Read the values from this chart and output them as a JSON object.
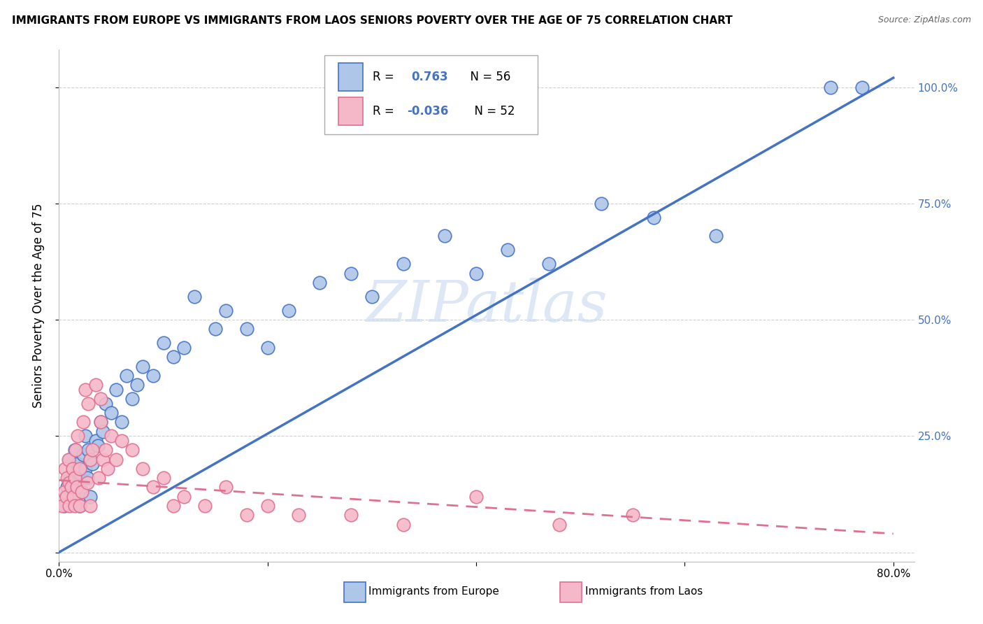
{
  "title": "IMMIGRANTS FROM EUROPE VS IMMIGRANTS FROM LAOS SENIORS POVERTY OVER THE AGE OF 75 CORRELATION CHART",
  "source": "Source: ZipAtlas.com",
  "ylabel": "Seniors Poverty Over the Age of 75",
  "xlabel_europe": "Immigrants from Europe",
  "xlabel_laos": "Immigrants from Laos",
  "watermark": "ZIPatlas",
  "europe_R": "0.763",
  "europe_N": 56,
  "laos_R": "-0.036",
  "laos_N": 52,
  "xlim": [
    0.0,
    0.82
  ],
  "ylim": [
    -0.02,
    1.08
  ],
  "xticks": [
    0.0,
    0.2,
    0.4,
    0.6,
    0.8
  ],
  "yticks": [
    0.0,
    0.25,
    0.5,
    0.75,
    1.0
  ],
  "ytick_labels": [
    "",
    "25.0%",
    "50.0%",
    "75.0%",
    "100.0%"
  ],
  "europe_color": "#aec6e8",
  "europe_line_color": "#4472c4",
  "laos_color": "#f5b8c8",
  "laos_line_color": "#e07090",
  "background_color": "#ffffff",
  "grid_color": "#d0d0d0",
  "europe_line_x0": 0.0,
  "europe_line_y0": 0.0,
  "europe_line_x1": 0.8,
  "europe_line_y1": 1.02,
  "laos_line_x0": 0.0,
  "laos_line_y0": 0.155,
  "laos_line_x1": 0.8,
  "laos_line_y1": 0.04,
  "europe_scatter_x": [
    0.005,
    0.008,
    0.01,
    0.01,
    0.012,
    0.013,
    0.015,
    0.015,
    0.017,
    0.018,
    0.02,
    0.02,
    0.022,
    0.023,
    0.025,
    0.025,
    0.027,
    0.028,
    0.03,
    0.03,
    0.032,
    0.035,
    0.037,
    0.04,
    0.042,
    0.045,
    0.05,
    0.055,
    0.06,
    0.065,
    0.07,
    0.075,
    0.08,
    0.09,
    0.1,
    0.11,
    0.12,
    0.13,
    0.15,
    0.16,
    0.18,
    0.2,
    0.22,
    0.25,
    0.28,
    0.3,
    0.33,
    0.37,
    0.4,
    0.43,
    0.47,
    0.52,
    0.57,
    0.63,
    0.74,
    0.77
  ],
  "europe_scatter_y": [
    0.1,
    0.14,
    0.16,
    0.2,
    0.12,
    0.18,
    0.15,
    0.22,
    0.14,
    0.19,
    0.1,
    0.17,
    0.13,
    0.21,
    0.18,
    0.25,
    0.16,
    0.22,
    0.12,
    0.2,
    0.19,
    0.24,
    0.23,
    0.28,
    0.26,
    0.32,
    0.3,
    0.35,
    0.28,
    0.38,
    0.33,
    0.36,
    0.4,
    0.38,
    0.45,
    0.42,
    0.44,
    0.55,
    0.48,
    0.52,
    0.48,
    0.44,
    0.52,
    0.58,
    0.6,
    0.55,
    0.62,
    0.68,
    0.6,
    0.65,
    0.62,
    0.75,
    0.72,
    0.68,
    1.0,
    1.0
  ],
  "laos_scatter_x": [
    0.003,
    0.005,
    0.006,
    0.007,
    0.008,
    0.009,
    0.01,
    0.01,
    0.012,
    0.013,
    0.014,
    0.015,
    0.015,
    0.016,
    0.017,
    0.018,
    0.02,
    0.02,
    0.022,
    0.023,
    0.025,
    0.027,
    0.028,
    0.03,
    0.03,
    0.032,
    0.035,
    0.038,
    0.04,
    0.04,
    0.042,
    0.045,
    0.047,
    0.05,
    0.055,
    0.06,
    0.07,
    0.08,
    0.09,
    0.1,
    0.11,
    0.12,
    0.14,
    0.16,
    0.18,
    0.2,
    0.23,
    0.28,
    0.33,
    0.4,
    0.48,
    0.55
  ],
  "laos_scatter_y": [
    0.1,
    0.13,
    0.18,
    0.12,
    0.16,
    0.2,
    0.1,
    0.15,
    0.14,
    0.18,
    0.12,
    0.1,
    0.16,
    0.22,
    0.14,
    0.25,
    0.1,
    0.18,
    0.13,
    0.28,
    0.35,
    0.15,
    0.32,
    0.1,
    0.2,
    0.22,
    0.36,
    0.16,
    0.28,
    0.33,
    0.2,
    0.22,
    0.18,
    0.25,
    0.2,
    0.24,
    0.22,
    0.18,
    0.14,
    0.16,
    0.1,
    0.12,
    0.1,
    0.14,
    0.08,
    0.1,
    0.08,
    0.08,
    0.06,
    0.12,
    0.06,
    0.08
  ]
}
